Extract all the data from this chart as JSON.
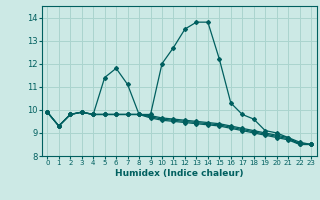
{
  "title": "",
  "xlabel": "Humidex (Indice chaleur)",
  "ylabel": "",
  "background_color": "#cce9e5",
  "grid_color": "#aad4ce",
  "line_color": "#005f5f",
  "xlim": [
    -0.5,
    23.5
  ],
  "ylim": [
    8.0,
    14.5
  ],
  "xticks": [
    0,
    1,
    2,
    3,
    4,
    5,
    6,
    7,
    8,
    9,
    10,
    11,
    12,
    13,
    14,
    15,
    16,
    17,
    18,
    19,
    20,
    21,
    22,
    23
  ],
  "yticks": [
    8,
    9,
    10,
    11,
    12,
    13,
    14
  ],
  "series": [
    [
      9.9,
      9.3,
      9.8,
      9.9,
      9.8,
      11.4,
      11.8,
      11.1,
      9.8,
      9.8,
      12.0,
      12.7,
      13.5,
      13.8,
      13.8,
      12.2,
      10.3,
      9.8,
      9.6,
      9.1,
      9.0,
      8.8,
      8.5,
      8.5
    ],
    [
      9.9,
      9.3,
      9.8,
      9.9,
      9.8,
      9.8,
      9.8,
      9.8,
      9.8,
      9.75,
      9.65,
      9.6,
      9.55,
      9.5,
      9.45,
      9.4,
      9.3,
      9.2,
      9.1,
      9.0,
      8.9,
      8.8,
      8.6,
      8.5
    ],
    [
      9.9,
      9.3,
      9.8,
      9.9,
      9.8,
      9.8,
      9.8,
      9.8,
      9.8,
      9.7,
      9.6,
      9.55,
      9.5,
      9.45,
      9.4,
      9.35,
      9.25,
      9.15,
      9.05,
      8.95,
      8.85,
      8.75,
      8.55,
      8.5
    ],
    [
      9.9,
      9.3,
      9.8,
      9.9,
      9.8,
      9.8,
      9.8,
      9.8,
      9.8,
      9.65,
      9.55,
      9.5,
      9.45,
      9.4,
      9.35,
      9.3,
      9.2,
      9.1,
      9.0,
      8.9,
      8.8,
      8.7,
      8.5,
      8.5
    ]
  ]
}
